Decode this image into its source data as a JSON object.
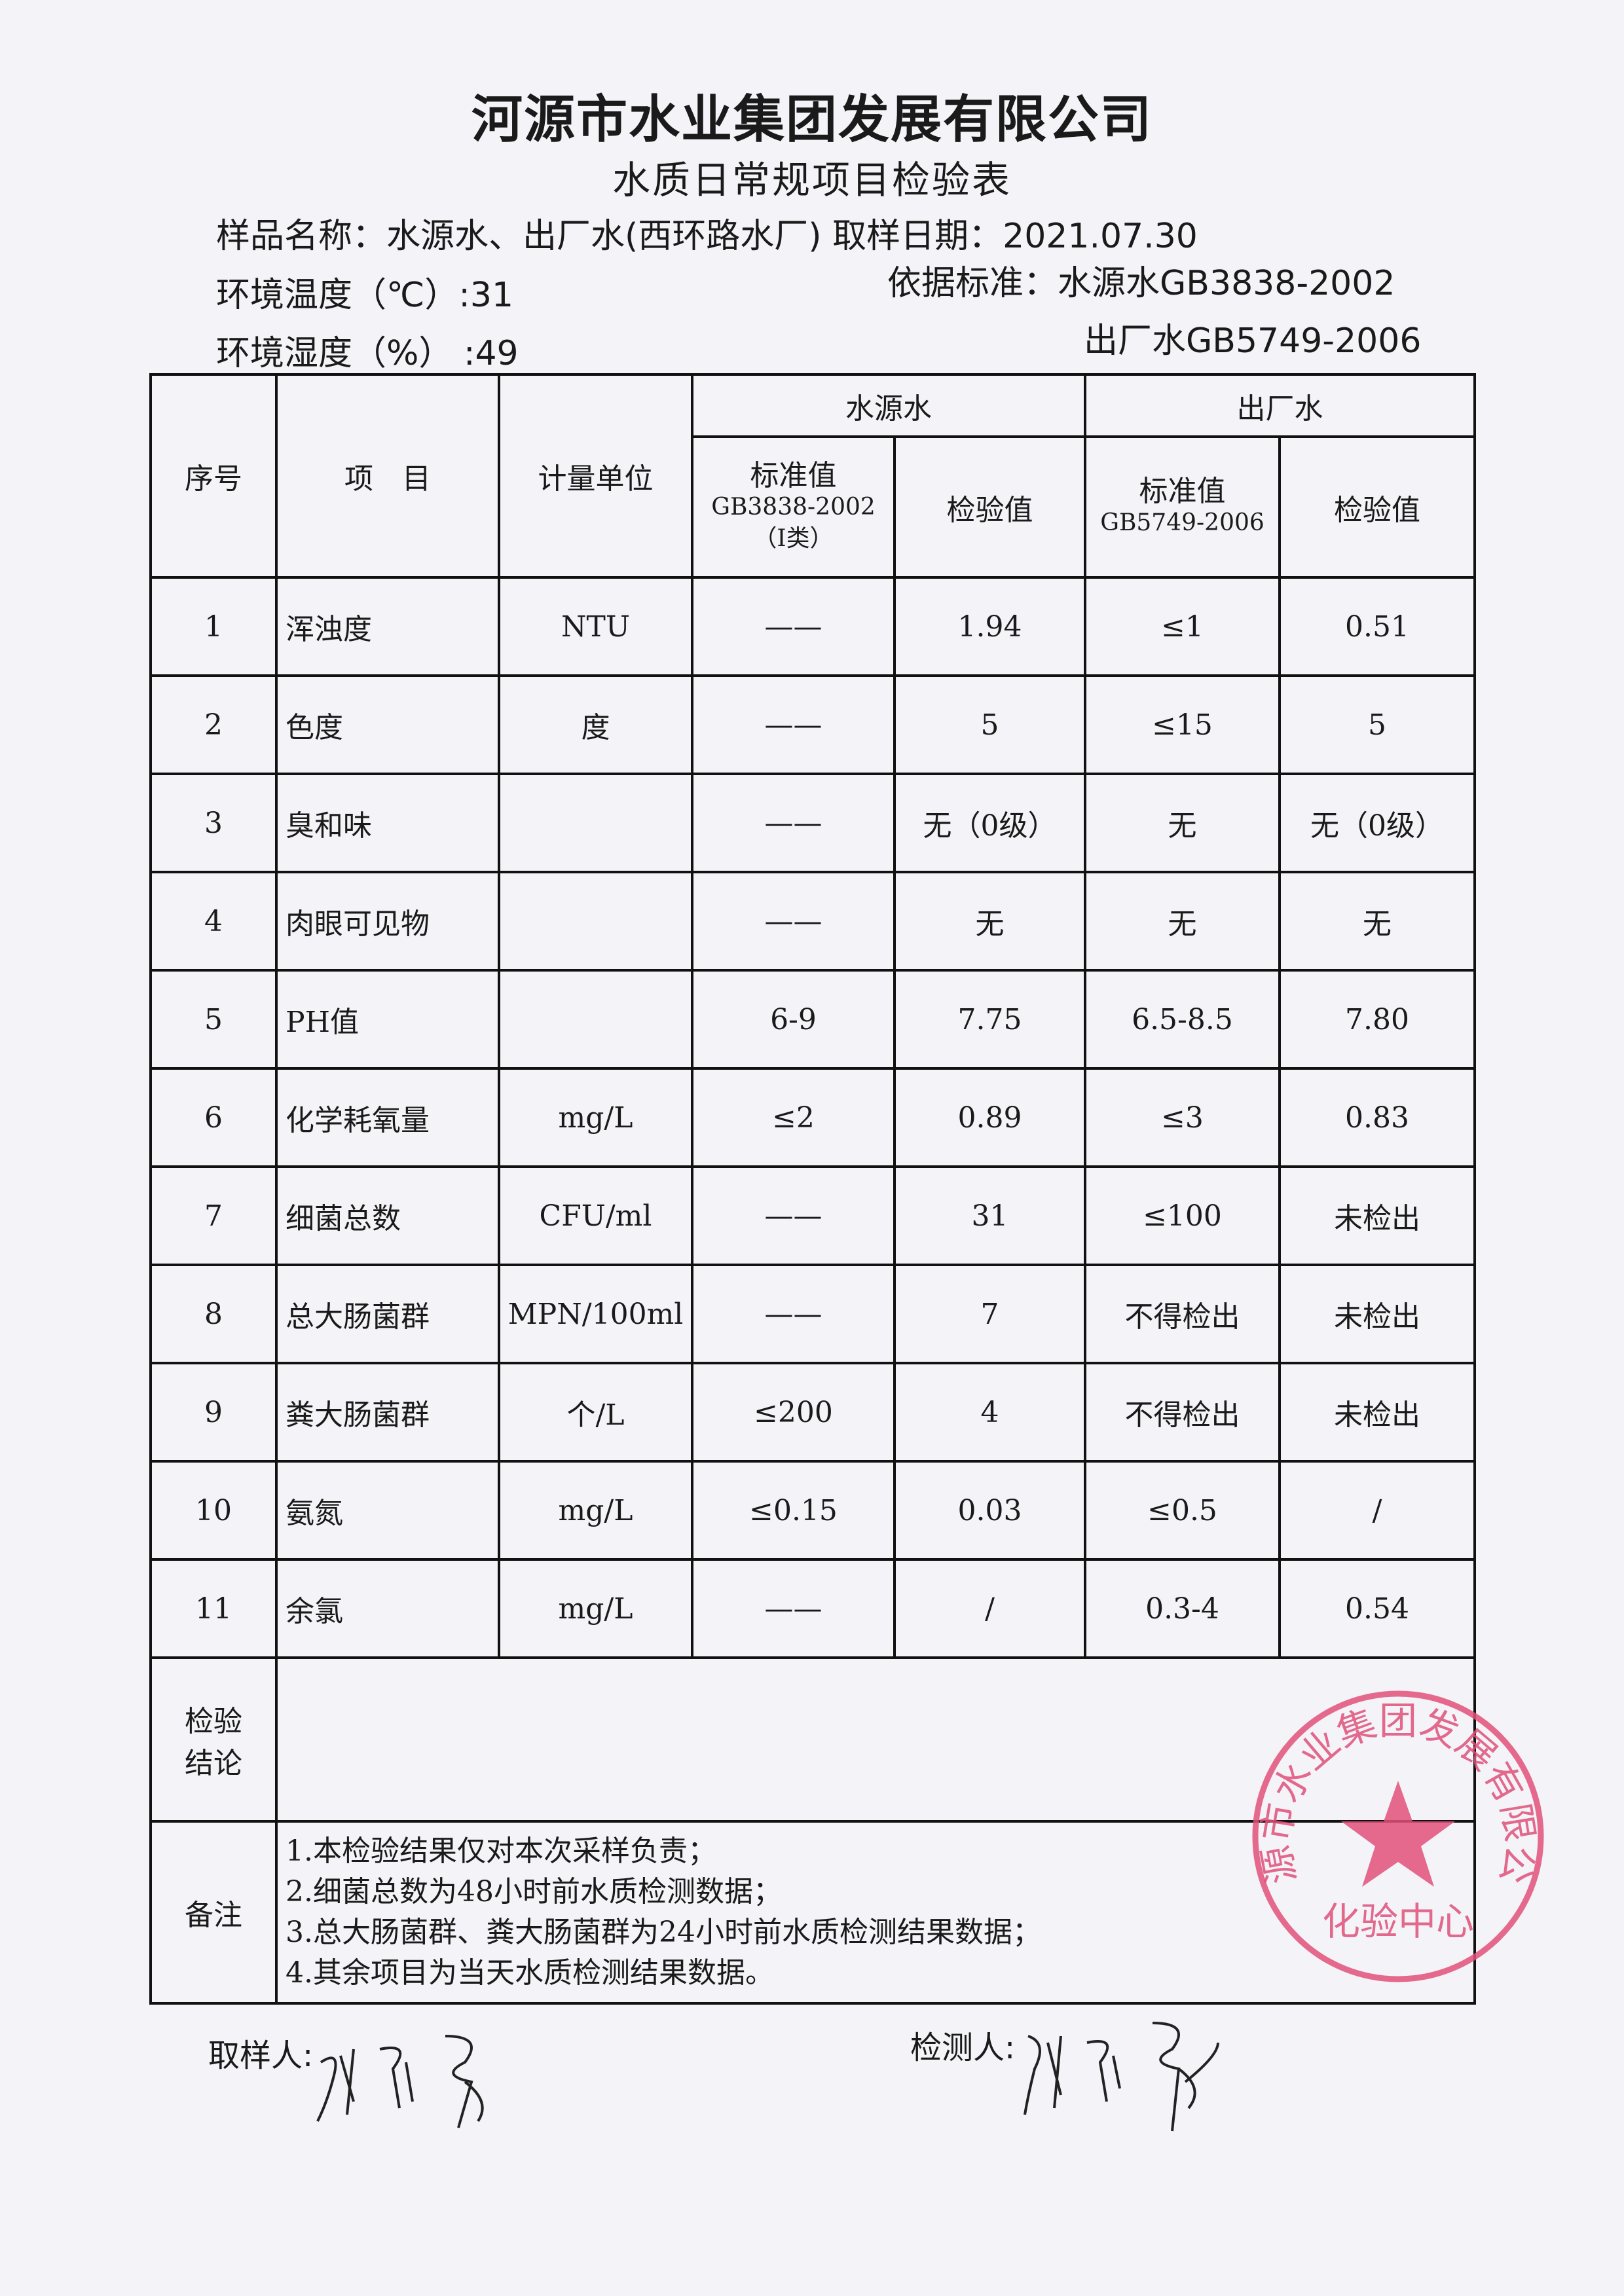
{
  "header": {
    "company": "河源市水业集团发展有限公司",
    "form_title": "水质日常规项目检验表",
    "sample_name_label": "样品名称：",
    "sample_name": "水源水、出厂水(西环路水厂)",
    "sampling_date_label": "取样日期：",
    "sampling_date": "2021.07.30",
    "temperature_label": "环境温度（℃）:",
    "temperature": "31",
    "humidity_label": "环境湿度（%）  :",
    "humidity": "49",
    "standard_label": "依据标准：",
    "standard_source": "水源水GB3838-2002",
    "standard_plant": "出厂水GB5749-2006"
  },
  "table": {
    "headers": {
      "seq": "序号",
      "item": "项　目",
      "unit": "计量单位",
      "source_water": "水源水",
      "plant_water": "出厂水",
      "source_std_1": "标准值",
      "source_std_2": "GB3838-2002",
      "source_std_3": "（Ⅰ类）",
      "source_val": "检验值",
      "plant_std_1": "标准值",
      "plant_std_2": "GB5749-2006",
      "plant_val": "检验值"
    },
    "rows": [
      {
        "seq": "1",
        "item": "浑浊度",
        "unit": "NTU",
        "src_std": "——",
        "src_val": "1.94",
        "plant_std": "≤1",
        "plant_val": "0.51"
      },
      {
        "seq": "2",
        "item": "色度",
        "unit": "度",
        "src_std": "——",
        "src_val": "5",
        "plant_std": "≤15",
        "plant_val": "5"
      },
      {
        "seq": "3",
        "item": "臭和味",
        "unit": "",
        "src_std": "——",
        "src_val": "无（0级）",
        "plant_std": "无",
        "plant_val": "无（0级）"
      },
      {
        "seq": "4",
        "item": "肉眼可见物",
        "unit": "",
        "src_std": "——",
        "src_val": "无",
        "plant_std": "无",
        "plant_val": "无"
      },
      {
        "seq": "5",
        "item": "PH值",
        "unit": "",
        "src_std": "6-9",
        "src_val": "7.75",
        "plant_std": "6.5-8.5",
        "plant_val": "7.80"
      },
      {
        "seq": "6",
        "item": "化学耗氧量",
        "unit": "mg/L",
        "src_std": "≤2",
        "src_val": "0.89",
        "plant_std": "≤3",
        "plant_val": "0.83"
      },
      {
        "seq": "7",
        "item": "细菌总数",
        "unit": "CFU/ml",
        "src_std": "——",
        "src_val": "31",
        "plant_std": "≤100",
        "plant_val": "未检出"
      },
      {
        "seq": "8",
        "item": "总大肠菌群",
        "unit": "MPN/100ml",
        "src_std": "——",
        "src_val": "7",
        "plant_std": "不得检出",
        "plant_val": "未检出"
      },
      {
        "seq": "9",
        "item": "粪大肠菌群",
        "unit": "个/L",
        "src_std": "≤200",
        "src_val": "4",
        "plant_std": "不得检出",
        "plant_val": "未检出"
      },
      {
        "seq": "10",
        "item": "氨氮",
        "unit": "mg/L",
        "src_std": "≤0.15",
        "src_val": "0.03",
        "plant_std": "≤0.5",
        "plant_val": "/"
      },
      {
        "seq": "11",
        "item": "余氯",
        "unit": "mg/L",
        "src_std": "——",
        "src_val": "/",
        "plant_std": "0.3-4",
        "plant_val": "0.54"
      }
    ],
    "conclusion_label_1": "检验",
    "conclusion_label_2": "结论",
    "conclusion": "",
    "remarks_label": "备注",
    "remarks": [
      "1.本检验结果仅对本次采样负责；",
      "2.细菌总数为48小时前水质检测数据；",
      "3.总大肠菌群、粪大肠菌群为24小时前水质检测结果数据；",
      "4.其余项目为当天水质检测结果数据。"
    ]
  },
  "footer": {
    "sampler_label": "取样人:",
    "tester_label": "检测人:"
  },
  "stamp": {
    "outer_text": "河源市水业集团发展有限公司",
    "inner_text": "化验中心",
    "color": "#e0507a"
  }
}
